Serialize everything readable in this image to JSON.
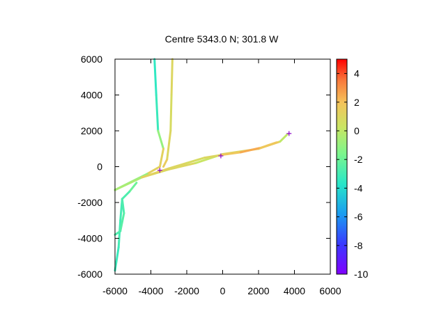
{
  "chart_data": {
    "type": "scatter",
    "title": "Centre 5343.0 N; 301.8  W",
    "xlabel": "",
    "ylabel": "",
    "xlim": [
      -6000,
      6000
    ],
    "ylim": [
      -6000,
      6000
    ],
    "x_ticks": [
      "-6000",
      "-4000",
      "-2000",
      "0",
      "2000",
      "4000",
      "6000"
    ],
    "y_ticks": [
      "6000",
      "4000",
      "2000",
      "0",
      "-2000",
      "-4000",
      "-6000"
    ],
    "grid": false,
    "colorbar": {
      "range": [
        -10,
        5
      ],
      "ticks": [
        "4",
        "2",
        "0",
        "-2",
        "-4",
        "-6",
        "-8",
        "-10"
      ],
      "colormap": "rainbow"
    },
    "tracks": [
      {
        "points": [
          [
            -3800,
            6000
          ],
          [
            -3700,
            4000
          ],
          [
            -3600,
            2000
          ],
          [
            -3300,
            1000
          ],
          [
            -3500,
            0
          ],
          [
            -4200,
            -400
          ],
          [
            -6000,
            -1300
          ]
        ],
        "values": [
          -3.5,
          -3.5,
          -3.0,
          1.0,
          1.5,
          1.0,
          -3.0
        ]
      },
      {
        "points": [
          [
            -2800,
            6000
          ],
          [
            -2850,
            4000
          ],
          [
            -2900,
            2000
          ],
          [
            -3100,
            400
          ],
          [
            -3300,
            0
          ]
        ],
        "values": [
          1.0,
          1.0,
          0.5,
          1.5,
          1.5
        ]
      },
      {
        "points": [
          [
            -6000,
            -1300
          ],
          [
            -4500,
            -600
          ],
          [
            -3000,
            -150
          ],
          [
            -1500,
            200
          ],
          [
            0,
            700
          ],
          [
            2000,
            1000
          ],
          [
            3200,
            1400
          ],
          [
            3600,
            1800
          ]
        ],
        "values": [
          -1.5,
          0.5,
          1.0,
          1.0,
          -0.5,
          2.5,
          0.5,
          -0.5
        ]
      },
      {
        "points": [
          [
            -4500,
            -600
          ],
          [
            -3000,
            -100
          ],
          [
            -2000,
            200
          ],
          [
            -1000,
            500
          ],
          [
            -100,
            650
          ],
          [
            1000,
            800
          ],
          [
            2100,
            1050
          ],
          [
            3000,
            1350
          ]
        ],
        "values": [
          1.5,
          1.0,
          1.0,
          0.5,
          1.5,
          2.0,
          3.0,
          0.5
        ]
      },
      {
        "points": [
          [
            -4800,
            -900
          ],
          [
            -5200,
            -1400
          ],
          [
            -5600,
            -1800
          ],
          [
            -5700,
            -3000
          ],
          [
            -5800,
            -4500
          ],
          [
            -6000,
            -5800
          ]
        ],
        "values": [
          -1.5,
          -2.5,
          -3.0,
          -3.0,
          -3.0,
          -3.5
        ]
      },
      {
        "points": [
          [
            -5600,
            -1800
          ],
          [
            -5500,
            -2600
          ],
          [
            -5700,
            -3600
          ],
          [
            -6000,
            -3800
          ]
        ],
        "values": [
          -3.0,
          -2.5,
          -2.5,
          -3.0
        ]
      }
    ],
    "markers": [
      {
        "x": -3500,
        "y": -200
      },
      {
        "x": -100,
        "y": 600
      },
      {
        "x": 3700,
        "y": 1850
      }
    ],
    "marker_color": "#8b00c8",
    "colors": {
      "axis": "#000000",
      "background": "#ffffff"
    }
  }
}
